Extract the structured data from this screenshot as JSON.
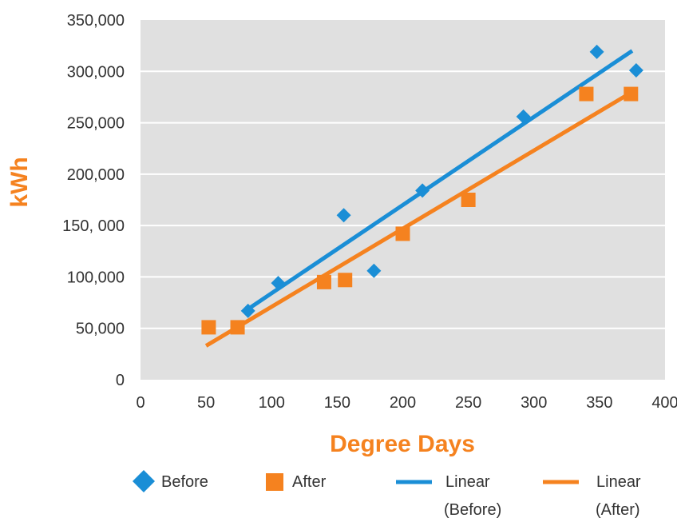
{
  "chart_data": {
    "type": "scatter",
    "xlabel": "Degree Days",
    "ylabel": "kWh",
    "xlim": [
      0,
      400
    ],
    "ylim": [
      0,
      350000
    ],
    "x_ticks": [
      "0",
      "50",
      "100",
      "150",
      "200",
      "250",
      "300",
      "350",
      "400"
    ],
    "y_ticks": [
      "0",
      "50,000",
      "100,000",
      "150, 000",
      "200,000",
      "250,000",
      "300,000",
      "350,000"
    ],
    "grid": "horizontal",
    "plot_background": "#e0e0e0",
    "legend_position": "bottom",
    "series": [
      {
        "name": "Before",
        "kind": "scatter",
        "marker": "diamond",
        "color": "#1a8ed6",
        "points": [
          [
            82,
            67000
          ],
          [
            105,
            94000
          ],
          [
            155,
            160000
          ],
          [
            178,
            106000
          ],
          [
            215,
            184000
          ],
          [
            292,
            256000
          ],
          [
            348,
            319000
          ],
          [
            378,
            301000
          ]
        ]
      },
      {
        "name": "After",
        "kind": "scatter",
        "marker": "square",
        "color": "#f5821f",
        "points": [
          [
            52,
            51000
          ],
          [
            74,
            51000
          ],
          [
            140,
            95000
          ],
          [
            156,
            97000
          ],
          [
            200,
            142000
          ],
          [
            250,
            175000
          ],
          [
            340,
            278000
          ],
          [
            374,
            278000
          ]
        ]
      },
      {
        "name": "Linear (Before)",
        "kind": "line",
        "color": "#1a8ed6",
        "points": [
          [
            80,
            67000
          ],
          [
            375,
            320000
          ]
        ]
      },
      {
        "name": "Linear (After)",
        "kind": "line",
        "color": "#f5821f",
        "points": [
          [
            50,
            33000
          ],
          [
            375,
            280000
          ]
        ]
      }
    ],
    "legend": [
      {
        "label": "Before",
        "line2": ""
      },
      {
        "label": "After",
        "line2": ""
      },
      {
        "label": "Linear",
        "line2": "(Before)"
      },
      {
        "label": "Linear",
        "line2": "(After)"
      }
    ],
    "title_color": "#f5821f"
  }
}
